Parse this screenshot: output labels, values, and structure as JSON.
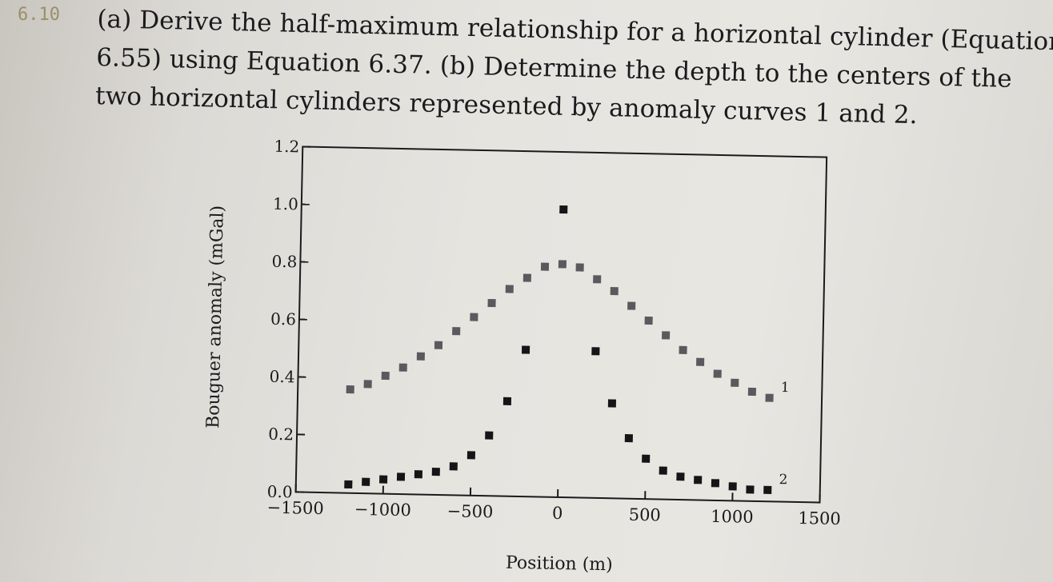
{
  "problem": {
    "number": "6.10",
    "lines": [
      "(a) Derive the half-maximum relationship for a horizontal cylinder (Equation",
      "6.55) using Equation 6.37. (b) Determine the depth to the centers of the",
      "two horizontal cylinders represented by anomaly curves 1 and 2."
    ]
  },
  "chart_data": {
    "type": "scatter",
    "xlabel": "Position (m)",
    "ylabel": "Bouguer anomaly (mGal)",
    "xlim": [
      -1500,
      1500
    ],
    "ylim": [
      0.0,
      1.2
    ],
    "xticks": [
      -1500,
      -1000,
      -500,
      0,
      500,
      1000,
      1500
    ],
    "xtick_labels": [
      "−1500",
      "−1000",
      "−500",
      "0",
      "500",
      "1000",
      "1500"
    ],
    "yticks": [
      0.0,
      0.2,
      0.4,
      0.6,
      0.8,
      1.0,
      1.2
    ],
    "ytick_labels": [
      "0.0",
      "0.2",
      "0.4",
      "0.6",
      "0.8",
      "1.0",
      "1.2"
    ],
    "grid": false,
    "series": [
      {
        "name": "1",
        "color": "#5a5a5e",
        "x": [
          -1200,
          -1100,
          -1000,
          -900,
          -800,
          -700,
          -600,
          -500,
          -400,
          -300,
          -200,
          -100,
          0,
          100,
          200,
          300,
          400,
          500,
          600,
          700,
          800,
          900,
          1000,
          1100,
          1200
        ],
        "y": [
          0.36,
          0.38,
          0.41,
          0.44,
          0.48,
          0.52,
          0.57,
          0.62,
          0.67,
          0.72,
          0.76,
          0.8,
          0.81,
          0.8,
          0.76,
          0.72,
          0.67,
          0.62,
          0.57,
          0.52,
          0.48,
          0.44,
          0.41,
          0.38,
          0.36
        ]
      },
      {
        "name": "2",
        "color": "#151517",
        "x": [
          -1200,
          -1100,
          -1000,
          -900,
          -800,
          -700,
          -600,
          -500,
          -400,
          -300,
          -200,
          0,
          200,
          300,
          400,
          500,
          600,
          700,
          800,
          900,
          1000,
          1100,
          1200
        ],
        "y": [
          0.03,
          0.04,
          0.05,
          0.06,
          0.07,
          0.08,
          0.1,
          0.14,
          0.21,
          0.33,
          0.51,
          1.0,
          0.51,
          0.33,
          0.21,
          0.14,
          0.1,
          0.08,
          0.07,
          0.06,
          0.05,
          0.04,
          0.04
        ]
      }
    ]
  }
}
